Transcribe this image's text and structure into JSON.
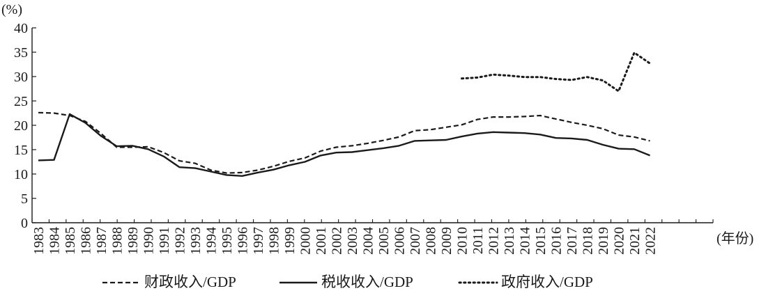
{
  "chart_data": {
    "type": "line",
    "ylabel": "(%)",
    "xlabel": "(年份)",
    "ylim": [
      0,
      40
    ],
    "yticks": [
      "0",
      "5",
      "10",
      "15",
      "20",
      "25",
      "30",
      "35",
      "40"
    ],
    "grid": false,
    "legend_position": "bottom",
    "categories": [
      "1983",
      "1984",
      "1985",
      "1986",
      "1987",
      "1988",
      "1989",
      "1990",
      "1991",
      "1992",
      "1993",
      "1994",
      "1995",
      "1996",
      "1997",
      "1998",
      "1999",
      "2000",
      "2001",
      "2002",
      "2003",
      "2004",
      "2005",
      "2006",
      "2007",
      "2008",
      "2009",
      "2010",
      "2011",
      "2012",
      "2013",
      "2014",
      "2015",
      "2016",
      "2017",
      "2018",
      "2019",
      "2020",
      "2021",
      "2022"
    ],
    "series": [
      {
        "name": "财政收入/GDP",
        "style": "dashed",
        "values": [
          22.6,
          22.5,
          22.0,
          20.8,
          18.3,
          15.5,
          15.5,
          15.6,
          14.4,
          12.7,
          12.2,
          10.8,
          10.2,
          10.3,
          10.8,
          11.6,
          12.6,
          13.3,
          14.7,
          15.5,
          15.8,
          16.3,
          16.9,
          17.6,
          18.9,
          19.1,
          19.6,
          20.1,
          21.2,
          21.7,
          21.7,
          21.8,
          22.0,
          21.3,
          20.6,
          20.0,
          19.3,
          18.0,
          17.6,
          16.8
        ]
      },
      {
        "name": "税收收入/GDP",
        "style": "solid",
        "values": [
          12.8,
          12.9,
          22.3,
          20.5,
          17.8,
          15.7,
          15.8,
          15.1,
          13.6,
          11.4,
          11.2,
          10.5,
          9.8,
          9.6,
          10.3,
          10.9,
          11.8,
          12.5,
          13.8,
          14.4,
          14.5,
          14.9,
          15.3,
          15.8,
          16.8,
          16.9,
          17.0,
          17.7,
          18.3,
          18.6,
          18.5,
          18.4,
          18.1,
          17.4,
          17.3,
          17.0,
          16.0,
          15.2,
          15.1,
          13.8
        ]
      },
      {
        "name": "政府收入/GDP",
        "style": "dotted",
        "values": [
          null,
          null,
          null,
          null,
          null,
          null,
          null,
          null,
          null,
          null,
          null,
          null,
          null,
          null,
          null,
          null,
          null,
          null,
          null,
          null,
          null,
          null,
          null,
          null,
          null,
          null,
          null,
          29.6,
          29.8,
          30.4,
          30.2,
          29.9,
          29.9,
          29.5,
          29.3,
          29.9,
          29.2,
          27.0,
          34.9,
          32.7
        ]
      }
    ]
  },
  "colors": {
    "line": "#1a1a1a",
    "background": "#ffffff"
  }
}
